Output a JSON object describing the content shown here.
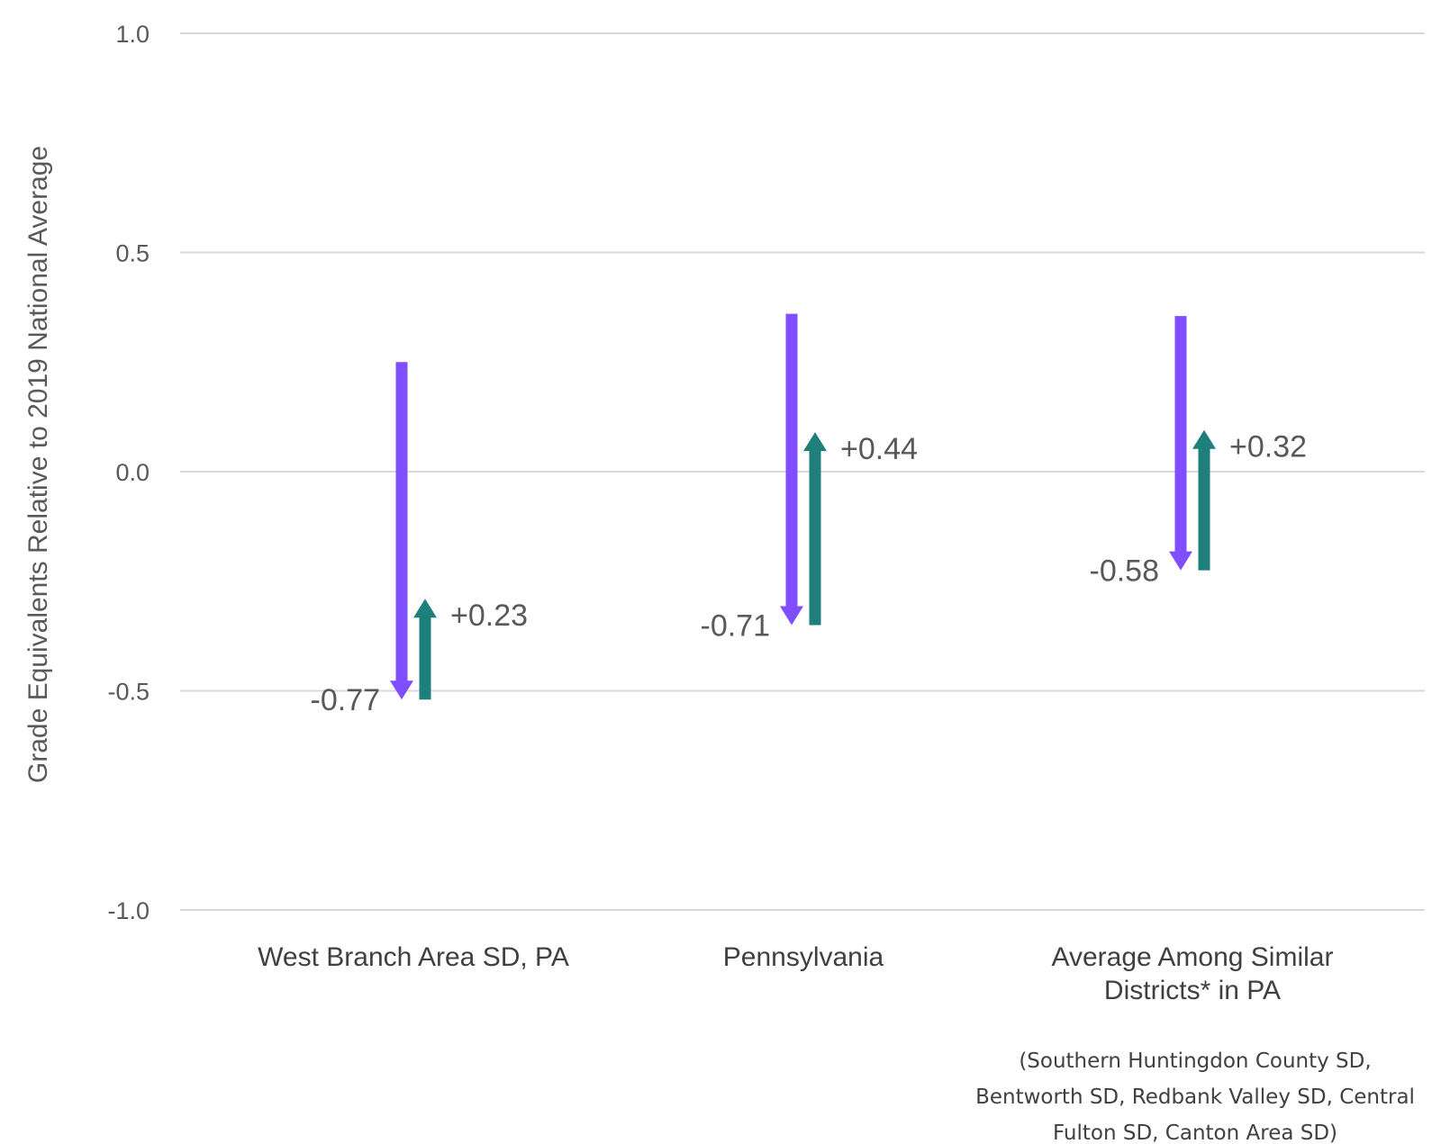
{
  "chart_data": {
    "type": "arrow",
    "ylabel": "Grade Equivalents Relative to 2019 National Average",
    "ylim": [
      -1.0,
      1.0
    ],
    "yticks": [
      1.0,
      0.5,
      0.0,
      -0.5,
      -1.0
    ],
    "ytick_labels": [
      "1.0",
      "0.5",
      "0.0",
      "-0.5",
      "-1.0"
    ],
    "grid": true,
    "colors": {
      "decline": "#7f4fff",
      "recovery": "#1f7f7a"
    },
    "categories": [
      {
        "label_lines": [
          "West Branch Area SD, PA"
        ],
        "decline": {
          "start": 0.25,
          "end": -0.52,
          "label": "-0.77"
        },
        "recovery": {
          "start": -0.52,
          "end": -0.29,
          "label": "+0.23"
        }
      },
      {
        "label_lines": [
          "Pennsylvania"
        ],
        "decline": {
          "start": 0.36,
          "end": -0.35,
          "label": "-0.71"
        },
        "recovery": {
          "start": -0.35,
          "end": 0.09,
          "label": "+0.44"
        }
      },
      {
        "label_lines": [
          "Average Among Similar",
          "Districts* in PA"
        ],
        "decline": {
          "start": 0.355,
          "end": -0.225,
          "label": "-0.58"
        },
        "recovery": {
          "start": -0.225,
          "end": 0.095,
          "label": "+0.32"
        }
      }
    ],
    "footnote_lines": [
      "(Southern Huntingdon County SD,",
      "Bentworth SD, Redbank Valley SD, Central",
      "Fulton SD, Canton Area SD)"
    ]
  }
}
